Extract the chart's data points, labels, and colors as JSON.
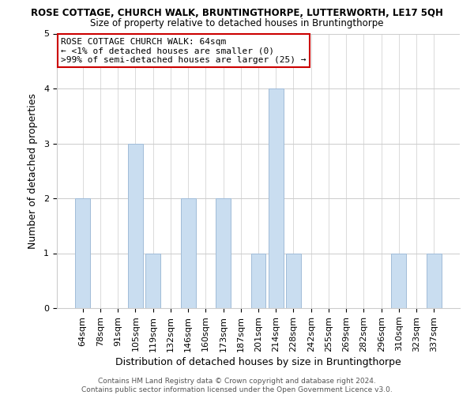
{
  "title": "ROSE COTTAGE, CHURCH WALK, BRUNTINGTHORPE, LUTTERWORTH, LE17 5QH",
  "subtitle": "Size of property relative to detached houses in Bruntingthorpe",
  "xlabel": "Distribution of detached houses by size in Bruntingthorpe",
  "ylabel": "Number of detached properties",
  "bar_labels": [
    "64sqm",
    "78sqm",
    "91sqm",
    "105sqm",
    "119sqm",
    "132sqm",
    "146sqm",
    "160sqm",
    "173sqm",
    "187sqm",
    "201sqm",
    "214sqm",
    "228sqm",
    "242sqm",
    "255sqm",
    "269sqm",
    "282sqm",
    "296sqm",
    "310sqm",
    "323sqm",
    "337sqm"
  ],
  "bar_values": [
    2,
    0,
    0,
    3,
    1,
    0,
    2,
    0,
    2,
    0,
    1,
    4,
    1,
    0,
    0,
    0,
    0,
    0,
    1,
    0,
    1
  ],
  "bar_color": "#c9ddf0",
  "bar_edgecolor": "#a0bcd8",
  "ylim": [
    0,
    5
  ],
  "yticks": [
    0,
    1,
    2,
    3,
    4,
    5
  ],
  "annotation_line1": "ROSE COTTAGE CHURCH WALK: 64sqm",
  "annotation_line2": "← <1% of detached houses are smaller (0)",
  "annotation_line3": ">99% of semi-detached houses are larger (25) →",
  "box_edge_color": "#cc0000",
  "footer_line1": "Contains HM Land Registry data © Crown copyright and database right 2024.",
  "footer_line2": "Contains public sector information licensed under the Open Government Licence v3.0.",
  "background_color": "#ffffff",
  "grid_color": "#cccccc",
  "title_fontsize": 8.5,
  "subtitle_fontsize": 8.5,
  "axis_label_fontsize": 9,
  "tick_fontsize": 8,
  "ann_fontsize": 8,
  "footer_fontsize": 6.5
}
